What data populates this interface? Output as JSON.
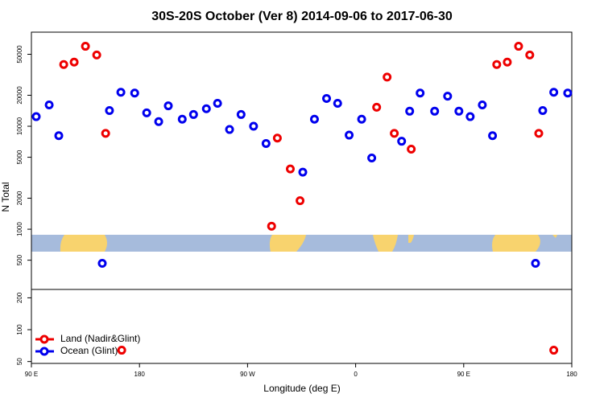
{
  "chart_data": [
    {
      "type": "scatter",
      "title": "30S-20S October (Ver 8)   2014-09-06 to 2017-06-30",
      "y_label": "N Total",
      "log_y": true,
      "xlim": [
        90,
        540
      ],
      "ylim": [
        260,
        82000
      ],
      "yticks": [
        500,
        1000,
        2000,
        5000,
        10000,
        20000,
        50000
      ],
      "series": [
        {
          "color": "#ee0000",
          "x": [
            116.9,
            125.6,
            135,
            144.4,
            151.8,
            290,
            294.8,
            305.6,
            313.7,
            377.5,
            386.2,
            392.2,
            406.3,
            477.5,
            486.3,
            495.7,
            505,
            512.5
          ],
          "values": [
            39800,
            42000,
            59800,
            49200,
            8530,
            1070,
            7670,
            3850,
            1890,
            15300,
            30000,
            8530,
            5990,
            39800,
            42000,
            59800,
            49200,
            8530
          ]
        },
        {
          "color": "#0000ee",
          "x": [
            94,
            104.8,
            112.8,
            149,
            155,
            164.5,
            176,
            186,
            196,
            204,
            215.6,
            225,
            235.7,
            245,
            255,
            264.6,
            275,
            285.4,
            316,
            325.7,
            335.8,
            345,
            354.6,
            365,
            373.4,
            398.3,
            405,
            413.7,
            425.8,
            436.6,
            446,
            455.4,
            465.5,
            474,
            509.8,
            515.8,
            525,
            536.6
          ],
          "values": [
            12400,
            16100,
            8100,
            466,
            14200,
            21400,
            21000,
            13500,
            11100,
            15800,
            11700,
            13000,
            14800,
            16700,
            9300,
            13000,
            10000,
            6800,
            3580,
            11700,
            18600,
            16700,
            8200,
            11700,
            4920,
            7150,
            14000,
            21000,
            14000,
            19600,
            14000,
            12400,
            16100,
            8100,
            466,
            14200,
            21400,
            21000
          ]
        }
      ]
    },
    {
      "type": "scatter",
      "x_label": "Longitude (deg E)",
      "log_y": true,
      "legend": "bottom-left",
      "xlim": [
        90,
        540
      ],
      "ylim": [
        48,
        240
      ],
      "yticks": [
        50,
        100,
        200
      ],
      "xticks": [
        {
          "value": 90,
          "label": "90 E"
        },
        180,
        {
          "value": 270,
          "label": "90 W"
        },
        {
          "value": 360,
          "label": "0"
        },
        {
          "value": 450,
          "label": "90 E"
        },
        {
          "value": 540,
          "label": "180"
        }
      ],
      "series": [
        {
          "name": "Land (Nadir&Glint)",
          "color": "#ee0000",
          "x": [
            165.2,
            525
          ],
          "values": [
            64,
            64
          ]
        },
        {
          "name": "Ocean (Glint)",
          "color": "#0000ee",
          "x": [],
          "values": []
        }
      ]
    }
  ]
}
